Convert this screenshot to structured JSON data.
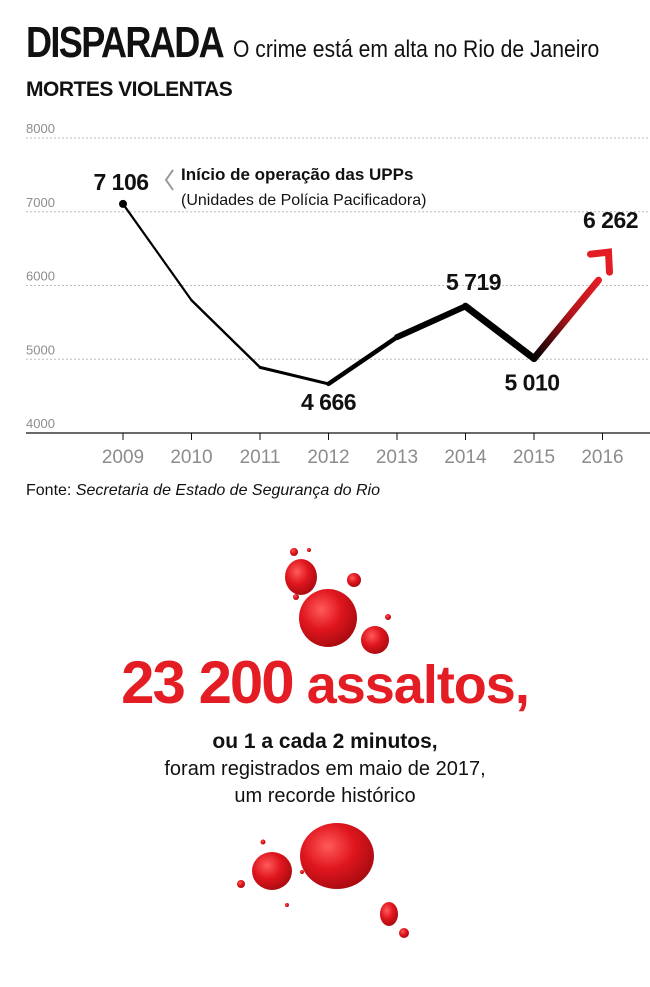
{
  "header": {
    "title": "DISPARADA",
    "subtitle": "O crime está em alta no Rio de Janeiro"
  },
  "chart_label": "MORTES VIOLENTAS",
  "chart_data": {
    "type": "line",
    "title": "MORTES VIOLENTAS",
    "x": [
      2009,
      2010,
      2011,
      2012,
      2013,
      2014,
      2015,
      2016
    ],
    "x_tick_labels": [
      "2009",
      "2010",
      "2011",
      "2012",
      "2013",
      "2014",
      "2015",
      "2016"
    ],
    "values": [
      7106,
      5800,
      4890,
      4666,
      5300,
      5719,
      5010,
      6262
    ],
    "y_ticks": [
      4000,
      5000,
      6000,
      7000,
      8000
    ],
    "y_tick_labels": [
      "4000",
      "5000",
      "6000",
      "7000",
      "8000"
    ],
    "ylim": [
      4000,
      8000
    ],
    "grid": true,
    "data_labels": [
      {
        "x": 2009,
        "text": "7 106"
      },
      {
        "x": 2012,
        "text": "4 666"
      },
      {
        "x": 2014,
        "text": "5 719"
      },
      {
        "x": 2015,
        "text": "5 010"
      },
      {
        "x": 2016,
        "text": "6 262"
      }
    ],
    "annotation": {
      "x": 2009,
      "title": "Início de operação das UPPs",
      "subtitle": "(Unidades de Polícia Pacificadora)"
    },
    "colors": {
      "line": "#000000",
      "highlight": "#e31d23",
      "grid": "#bdbdbd",
      "tick": "#8c8c8c"
    }
  },
  "source": {
    "prefix": "Fonte:",
    "text": "Secretaria de Estado de Segurança do Rio"
  },
  "stat": {
    "number": "23 200",
    "unit": "assaltos,",
    "line1": "ou 1 a cada 2 minutos,",
    "line2": "foram registrados em maio de 2017,",
    "line3": "um recorde histórico"
  },
  "accent_color": "#e31d23"
}
